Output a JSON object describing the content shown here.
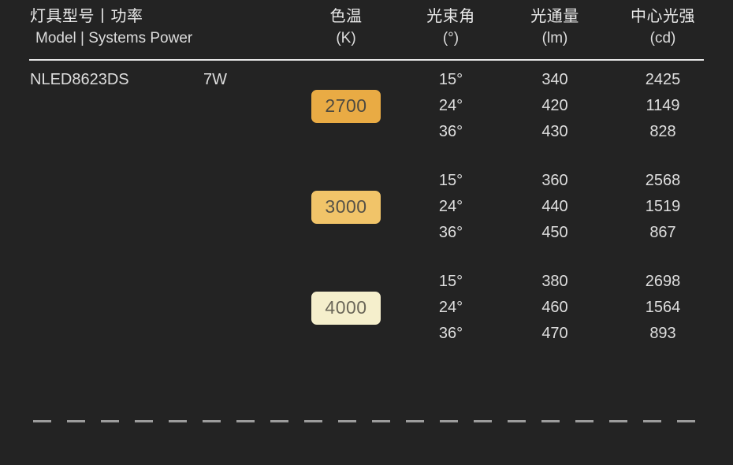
{
  "theme": {
    "background": "#232323",
    "text_color": "#dedede",
    "header_text_color": "#e9e9e9",
    "divider_color": "#e6e6e6",
    "dash_color": "#9c9c9c"
  },
  "header": {
    "model_power_zh": "灯具型号丨功率",
    "model_power_en": "Model | Systems Power",
    "cct_zh": "色温",
    "cct_unit": "(K)",
    "beam_zh": "光束角",
    "beam_unit": "(°)",
    "flux_zh": "光通量",
    "flux_unit": "(lm)",
    "intensity_zh": "中心光强",
    "intensity_unit": "(cd)"
  },
  "product": {
    "model": "NLED8623DS",
    "power": "7W"
  },
  "groups": [
    {
      "cct": "2700",
      "badge_bg": "#e9ab44",
      "badge_text": "#4e4a40",
      "rows": [
        {
          "beam": "15°",
          "flux": "340",
          "intensity": "2425"
        },
        {
          "beam": "24°",
          "flux": "420",
          "intensity": "1149"
        },
        {
          "beam": "36°",
          "flux": "430",
          "intensity": "828"
        }
      ]
    },
    {
      "cct": "3000",
      "badge_bg": "#f1c469",
      "badge_text": "#555147",
      "rows": [
        {
          "beam": "15°",
          "flux": "360",
          "intensity": "2568"
        },
        {
          "beam": "24°",
          "flux": "440",
          "intensity": "1519"
        },
        {
          "beam": "36°",
          "flux": "450",
          "intensity": "867"
        }
      ]
    },
    {
      "cct": "4000",
      "badge_bg": "#f5efcc",
      "badge_text": "#6b6759",
      "rows": [
        {
          "beam": "15°",
          "flux": "380",
          "intensity": "2698"
        },
        {
          "beam": "24°",
          "flux": "460",
          "intensity": "1564"
        },
        {
          "beam": "36°",
          "flux": "470",
          "intensity": "893"
        }
      ]
    }
  ]
}
